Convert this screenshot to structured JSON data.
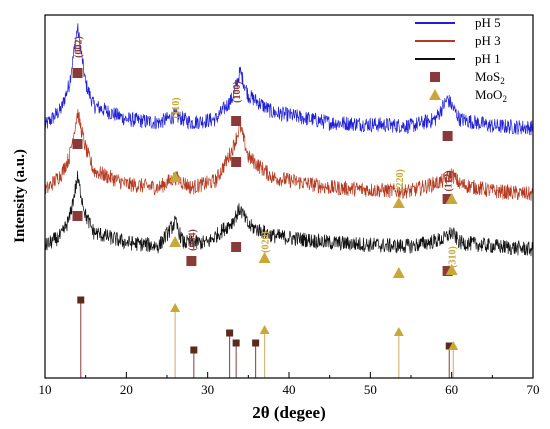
{
  "chart_data": {
    "type": "line",
    "xlabel": "2θ (degee)",
    "ylabel": "Intensity (a.u.)",
    "xlim": [
      10,
      70
    ],
    "x_ticks": [
      10,
      20,
      30,
      40,
      50,
      60,
      70
    ],
    "y_ticks_shown": false,
    "legend_position": "top-right",
    "series": [
      {
        "name": "pH 5",
        "color": "#1f1fd6",
        "points": [
          [
            10,
            0.2
          ],
          [
            12,
            0.3
          ],
          [
            13,
            0.45
          ],
          [
            14,
            0.78
          ],
          [
            15,
            0.45
          ],
          [
            16,
            0.32
          ],
          [
            20,
            0.24
          ],
          [
            24,
            0.22
          ],
          [
            26,
            0.26
          ],
          [
            28,
            0.22
          ],
          [
            31,
            0.24
          ],
          [
            33,
            0.36
          ],
          [
            34,
            0.52
          ],
          [
            35,
            0.38
          ],
          [
            38,
            0.28
          ],
          [
            45,
            0.22
          ],
          [
            55,
            0.2
          ],
          [
            58,
            0.24
          ],
          [
            59.5,
            0.36
          ],
          [
            61,
            0.24
          ],
          [
            65,
            0.2
          ],
          [
            70,
            0.19
          ]
        ]
      },
      {
        "name": "pH 3",
        "color": "#b5391f",
        "points": [
          [
            10,
            0.2
          ],
          [
            12,
            0.3
          ],
          [
            13,
            0.4
          ],
          [
            14,
            0.66
          ],
          [
            15,
            0.45
          ],
          [
            16,
            0.32
          ],
          [
            20,
            0.24
          ],
          [
            24,
            0.22
          ],
          [
            26,
            0.28
          ],
          [
            28,
            0.22
          ],
          [
            31,
            0.26
          ],
          [
            33,
            0.44
          ],
          [
            34,
            0.58
          ],
          [
            35,
            0.4
          ],
          [
            38,
            0.28
          ],
          [
            45,
            0.22
          ],
          [
            53,
            0.2
          ],
          [
            55,
            0.2
          ],
          [
            59,
            0.26
          ],
          [
            60,
            0.3
          ],
          [
            61,
            0.24
          ],
          [
            65,
            0.2
          ],
          [
            70,
            0.18
          ]
        ]
      },
      {
        "name": "pH 1",
        "color": "#111111",
        "points": [
          [
            10,
            0.2
          ],
          [
            12,
            0.26
          ],
          [
            13,
            0.36
          ],
          [
            14,
            0.6
          ],
          [
            15,
            0.38
          ],
          [
            16,
            0.28
          ],
          [
            20,
            0.22
          ],
          [
            24,
            0.2
          ],
          [
            26,
            0.34
          ],
          [
            27,
            0.22
          ],
          [
            30,
            0.22
          ],
          [
            33,
            0.34
          ],
          [
            34,
            0.42
          ],
          [
            35,
            0.32
          ],
          [
            38,
            0.26
          ],
          [
            45,
            0.22
          ],
          [
            53,
            0.2
          ],
          [
            55,
            0.2
          ],
          [
            59,
            0.24
          ],
          [
            60,
            0.28
          ],
          [
            61,
            0.22
          ],
          [
            65,
            0.2
          ],
          [
            70,
            0.18
          ]
        ]
      }
    ],
    "legend": [
      {
        "label": "pH 5",
        "kind": "line",
        "color": "#1f1fd6"
      },
      {
        "label": "pH 3",
        "kind": "line",
        "color": "#b5391f"
      },
      {
        "label": "pH 1",
        "kind": "line",
        "color": "#111111"
      },
      {
        "label": "MoS",
        "sub": "2",
        "kind": "square",
        "color": "#8b3a3a"
      },
      {
        "label": "MoO",
        "sub": "2",
        "kind": "triangle",
        "color": "#c9a83a"
      }
    ],
    "peak_labels": [
      {
        "text": "(002)",
        "x": 14,
        "color": "#8b3a3a"
      },
      {
        "text": "(110)",
        "x": 26,
        "color": "#c9a83a"
      },
      {
        "text": "(100)",
        "x": 33.5,
        "color": "#8b3a3a"
      },
      {
        "text": "(004)",
        "x": 28,
        "color": "#8b3a3a"
      },
      {
        "text": "(020)",
        "x": 37,
        "color": "#c9a83a"
      },
      {
        "text": "(220)",
        "x": 53.5,
        "color": "#c9a83a"
      },
      {
        "text": "(112)",
        "x": 59.5,
        "color": "#8b3a3a"
      },
      {
        "text": "(310)",
        "x": 60,
        "color": "#c9a83a"
      }
    ],
    "reference_lines": {
      "MoS2": [
        14.4,
        28.3,
        32.7,
        33.5,
        35.9,
        59.7
      ],
      "MoO2": [
        26.0,
        37.0,
        53.5,
        60.2
      ]
    }
  }
}
